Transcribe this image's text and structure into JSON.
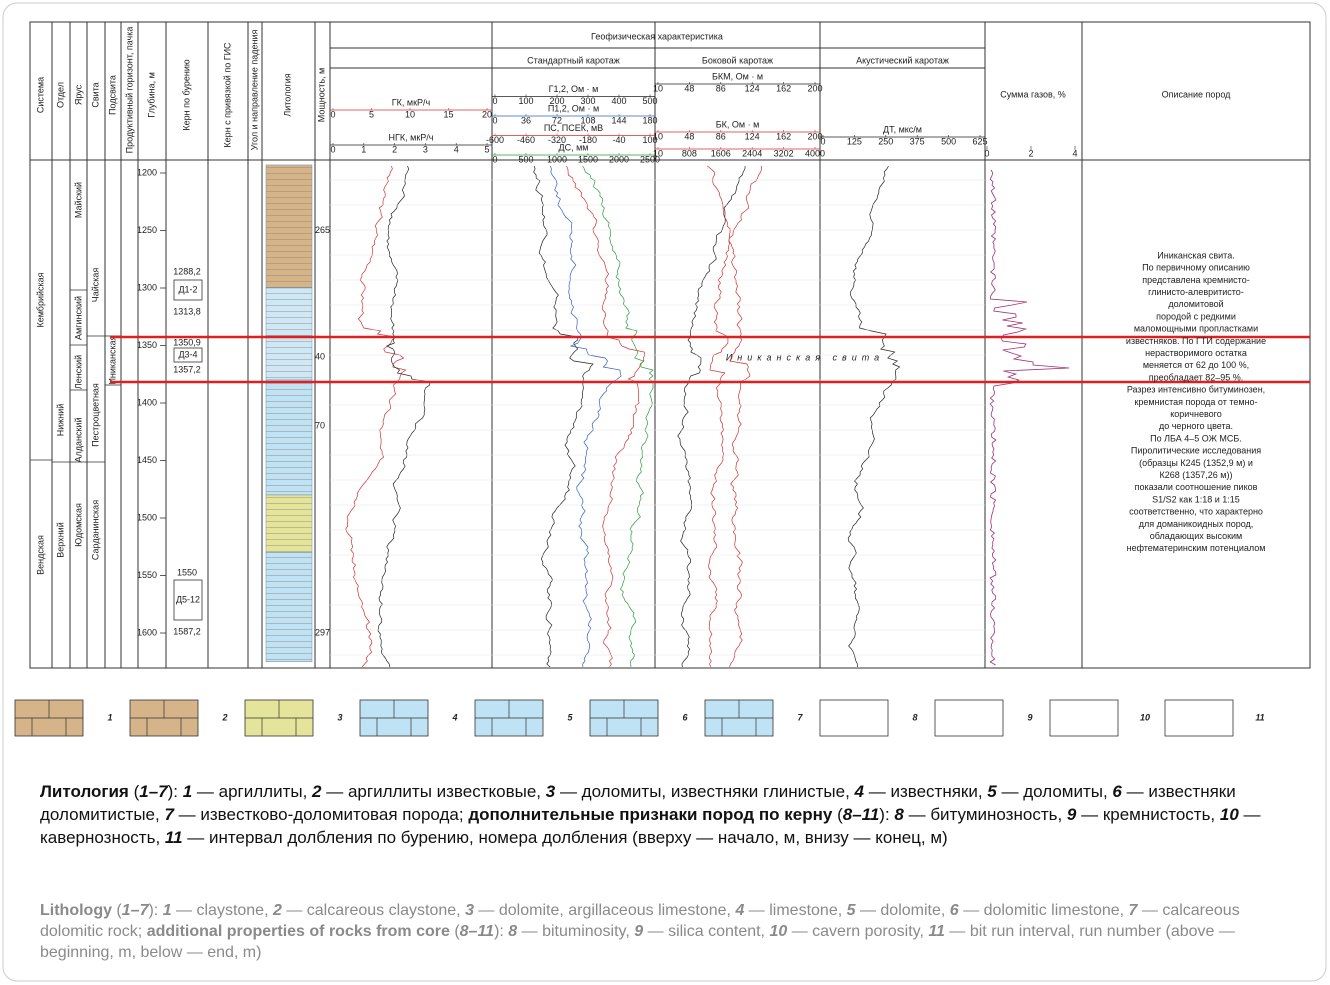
{
  "figure": {
    "column_headers": [
      "Система",
      "Отдел",
      "Ярус",
      "Свита",
      "Подсвита",
      "Продуктивный горизонт, пачка",
      "Глубина, м",
      "Керн по бурению",
      "Керн с привязкой по ГИС",
      "Угол и направление падения",
      "Литология",
      "Мощность, м"
    ],
    "geophysics_title": "Геофизическая характеристика",
    "tracks": [
      {
        "title": "",
        "scales": [
          {
            "label": "ГК, мкР/ч",
            "color": "#d03030",
            "ticks": [
              0,
              5,
              10,
              15,
              20
            ]
          },
          {
            "label": "НГК, мкР/ч",
            "color": "#222222",
            "ticks": [
              0,
              1,
              2,
              3,
              4,
              5
            ]
          }
        ]
      },
      {
        "title": "Стандартный каротаж",
        "scales": [
          {
            "label": "Г1,2, Ом · м",
            "color": "#222222",
            "ticks": [
              0,
              100,
              200,
              300,
              400,
              500
            ]
          },
          {
            "label": "П1,2, Ом · м",
            "color": "#3060c0",
            "ticks": [
              0,
              36,
              72,
              108,
              144,
              180
            ]
          },
          {
            "label": "ПС, ПСЕК, мВ",
            "color": "#d03030",
            "ticks": [
              -600,
              -460,
              -320,
              -180,
              -40,
              100
            ]
          },
          {
            "label": "ДС, мм",
            "color": "#2a9a3a",
            "ticks": [
              0,
              500,
              1000,
              1500,
              2000,
              2500
            ]
          }
        ]
      },
      {
        "title": "Боковой каротаж",
        "scales": [
          {
            "label": "БКМ, Ом · м",
            "color": "#222222",
            "ticks": [
              10,
              48,
              86,
              124,
              162,
              200
            ]
          },
          {
            "label": "БК, Ом · м",
            "color": "#d03030",
            "ticks": [
              10,
              48,
              86,
              124,
              162,
              200
            ]
          },
          {
            "label": "",
            "color": "#d03030",
            "ticks": [
              10,
              808,
              1606,
              2404,
              3202,
              4000
            ]
          }
        ]
      },
      {
        "title": "Акустический каротаж",
        "scales": [
          {
            "label": "ДТ, мкс/м",
            "color": "#222222",
            "ticks": [
              0,
              125,
              250,
              375,
              500,
              625
            ]
          }
        ]
      }
    ],
    "gas_header": "Сумма газов, %",
    "gas_ticks": [
      0,
      2,
      4
    ],
    "description_header": "Описание пород",
    "depth_ticks": [
      1200,
      1250,
      1300,
      1350,
      1400,
      1450,
      1500,
      1550,
      1600
    ],
    "thickness_labels": [
      {
        "value": 265,
        "depth": 1250
      },
      {
        "value": 40,
        "depth": 1360
      },
      {
        "value": 70,
        "depth": 1420
      },
      {
        "value": 297,
        "depth": 1600
      }
    ],
    "system": [
      "Кембрийская",
      "Вендская"
    ],
    "series": [
      "Нижний",
      "Верхний"
    ],
    "stage": [
      "Майский",
      "Амгинский",
      "Ленский",
      "Алданский",
      "Юдомская"
    ],
    "formation": [
      "Чайская",
      "Пестроцветная",
      "Сарданинская"
    ],
    "subformation": [
      "Иниканская"
    ],
    "cores": [
      {
        "top": "1288,2",
        "code": "Д1-2",
        "bottom": "1313,8"
      },
      {
        "top": "1350,9",
        "code": "Д3-4",
        "bottom": "1357,2"
      },
      {
        "top": "1550",
        "code": "Д5-12",
        "bottom": "1587,2"
      }
    ],
    "formation_label": "Иниканская свита",
    "description": [
      "Иниканская свита.",
      "По первичному описанию",
      "представлена кремнисто-",
      "глинисто-алевритисто-",
      "доломитовой",
      "породой с редкими",
      "маломощными пропластками",
      "известняков. По ГТИ содержание",
      "нерастворимого остатка",
      "меняется от 62 до 100 %,",
      "преобладает 82–95 %.",
      "Разрез интенсивно битуминозен,",
      "кремнистая порода от темно-",
      "коричневого",
      "до черного цвета.",
      "По ЛБА 4–5 ОЖ МСБ.",
      "Пиролитические исследования",
      "(образцы К245 (1352,9 м) и",
      "К268 (1357,26 м))",
      "показали соотношение пиков",
      "S1/S2 как 1:18 и 1:15",
      "соответственно, что характерно",
      "для доманикоидных пород,",
      "обладающих высоким",
      "нефтематеринским потенциалом"
    ],
    "legend": [
      "1",
      "2",
      "3",
      "4",
      "5",
      "6",
      "7",
      "8",
      "9",
      "10",
      "11"
    ],
    "caption_ru": [
      {
        "text": "Литология",
        "style": "b"
      },
      {
        "text": " ("
      },
      {
        "text": "1–7",
        "style": "bi"
      },
      {
        "text": "): "
      },
      {
        "text": "1",
        "style": "bi"
      },
      {
        "text": " — аргиллиты, "
      },
      {
        "text": "2",
        "style": "bi"
      },
      {
        "text": " — аргиллиты известковые, "
      },
      {
        "text": "3",
        "style": "bi"
      },
      {
        "text": " — доломиты, известняки глинистые, "
      },
      {
        "text": "4",
        "style": "bi"
      },
      {
        "text": " — известняки, "
      },
      {
        "text": "5",
        "style": "bi"
      },
      {
        "text": " — доломиты, "
      },
      {
        "text": "6",
        "style": "bi"
      },
      {
        "text": " — известняки доломитистые, "
      },
      {
        "text": "7",
        "style": "bi"
      },
      {
        "text": " — известково-доломитовая порода; "
      },
      {
        "text": "дополнительные признаки пород по керну",
        "style": "b"
      },
      {
        "text": " ("
      },
      {
        "text": "8–11",
        "style": "bi"
      },
      {
        "text": "): "
      },
      {
        "text": "8",
        "style": "bi"
      },
      {
        "text": " — битуминозность, "
      },
      {
        "text": "9",
        "style": "bi"
      },
      {
        "text": " — кремнистость, "
      },
      {
        "text": "10",
        "style": "bi"
      },
      {
        "text": " — кавернозность, "
      },
      {
        "text": "11",
        "style": "bi"
      },
      {
        "text": " — интервал долбления по бурению, номера долбления (вверху — начало, м, внизу — конец, м)"
      }
    ],
    "caption_en": [
      {
        "text": "Lithology",
        "style": "b"
      },
      {
        "text": " ("
      },
      {
        "text": "1–7",
        "style": "bi"
      },
      {
        "text": "): "
      },
      {
        "text": "1",
        "style": "bi"
      },
      {
        "text": " — claystone, "
      },
      {
        "text": "2",
        "style": "bi"
      },
      {
        "text": " — calcareous claystone, "
      },
      {
        "text": "3",
        "style": "bi"
      },
      {
        "text": " — dolomite, argillaceous limestone, "
      },
      {
        "text": "4",
        "style": "bi"
      },
      {
        "text": " — limestone, "
      },
      {
        "text": "5",
        "style": "bi"
      },
      {
        "text": " — dolomite, "
      },
      {
        "text": "6",
        "style": "bi"
      },
      {
        "text": " — dolomitic limestone, "
      },
      {
        "text": "7",
        "style": "bi"
      },
      {
        "text": " — calcareous dolomitic rock; "
      },
      {
        "text": "additional properties of rocks from core",
        "style": "b"
      },
      {
        "text": " ("
      },
      {
        "text": "8–11",
        "style": "bi"
      },
      {
        "text": "): "
      },
      {
        "text": "8",
        "style": "bi"
      },
      {
        "text": " — bituminosity, "
      },
      {
        "text": "9",
        "style": "bi"
      },
      {
        "text": " — silica content, "
      },
      {
        "text": "10",
        "style": "bi"
      },
      {
        "text": " — cavern porosity, "
      },
      {
        "text": "11",
        "style": "bi"
      },
      {
        "text": " — bit run interval, run number (above — beginning, m, below — end, m)"
      }
    ]
  }
}
